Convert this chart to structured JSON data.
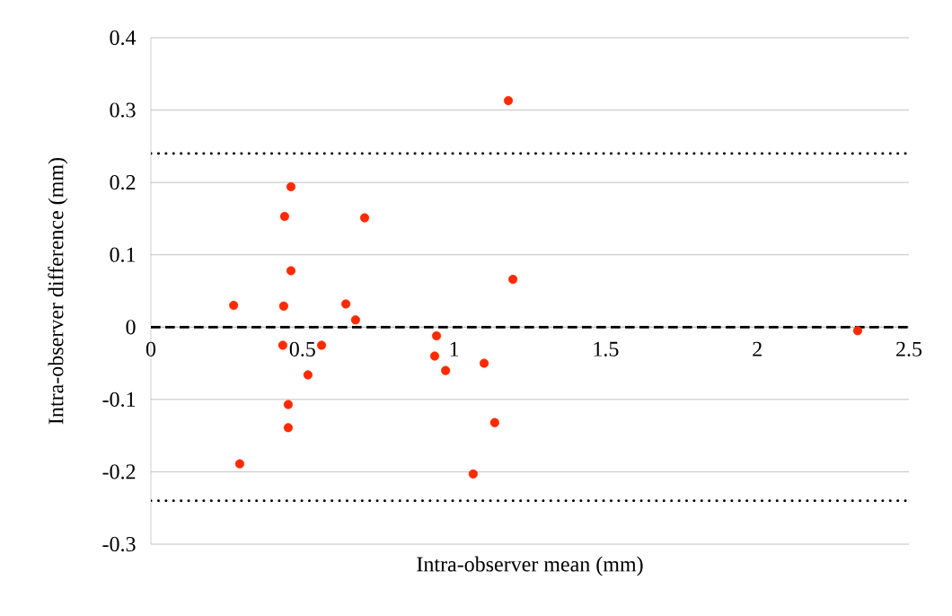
{
  "chart_data": {
    "type": "scatter",
    "xlabel": "Intra-observer mean (mm)",
    "ylabel": "Intra-observer difference (mm)",
    "xlim": [
      0,
      2.5
    ],
    "ylim": [
      -0.3,
      0.4
    ],
    "xticks": [
      0,
      0.5,
      1,
      1.5,
      2,
      2.5
    ],
    "yticks": [
      -0.3,
      -0.2,
      -0.1,
      0,
      0.1,
      0.2,
      0.3,
      0.4
    ],
    "grid": "y",
    "marker": "circle",
    "series": [
      {
        "color": "#ff2a00",
        "x": [
          0.273,
          0.293,
          0.441,
          0.462,
          0.462,
          0.438,
          0.435,
          0.453,
          0.453,
          0.518,
          0.563,
          0.643,
          0.675,
          0.705,
          0.942,
          0.936,
          0.972,
          1.063,
          1.099,
          1.134,
          1.179,
          1.194,
          2.331
        ],
        "values": [
          0.03,
          -0.189,
          0.153,
          0.194,
          0.078,
          0.029,
          -0.025,
          -0.107,
          -0.139,
          -0.066,
          -0.025,
          0.032,
          0.01,
          0.151,
          -0.012,
          -0.04,
          -0.06,
          -0.203,
          -0.05,
          -0.132,
          0.313,
          0.066,
          -0.005
        ]
      }
    ],
    "ref_lines": [
      {
        "axis": "y",
        "value": 0.24,
        "color": "#000000",
        "line_style": "dotted"
      },
      {
        "axis": "y",
        "value": -0.24,
        "color": "#000000",
        "line_style": "dotted"
      },
      {
        "axis": "y",
        "value": 0,
        "color": "#000000",
        "line_style": "dashed"
      }
    ]
  }
}
